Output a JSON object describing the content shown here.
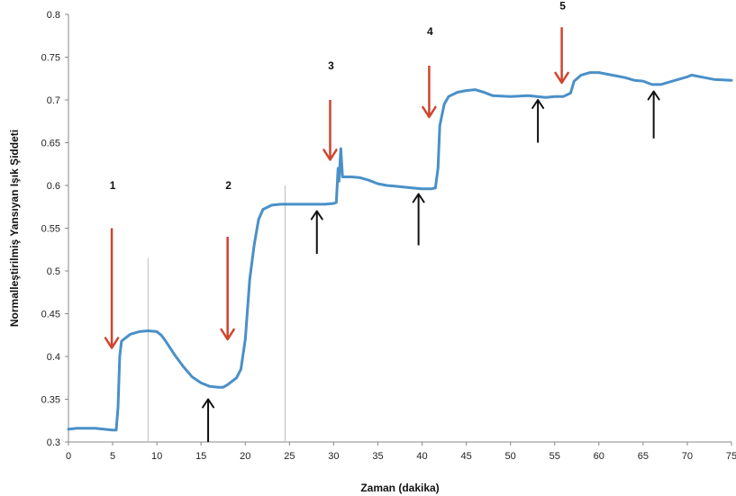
{
  "chart_data": {
    "type": "line",
    "xlabel": "Zaman (dakika)",
    "ylabel": "Normalleştirilmiş Yansıyan Işık Şiddeti",
    "xlim": [
      0,
      75
    ],
    "ylim": [
      0.3,
      0.8
    ],
    "x_ticks": [
      "0",
      "5",
      "10",
      "15",
      "20",
      "25",
      "30",
      "35",
      "40",
      "45",
      "50",
      "55",
      "60",
      "65",
      "70",
      "75"
    ],
    "y_ticks": [
      "0.3",
      "0.35",
      "0.4",
      "0.45",
      "0.5",
      "0.55",
      "0.6",
      "0.65",
      "0.7",
      "0.75",
      "0.8"
    ],
    "grid": false,
    "line_color": "#4a90c8",
    "series": [
      {
        "points": [
          [
            0,
            0.315
          ],
          [
            1,
            0.316
          ],
          [
            2,
            0.316
          ],
          [
            3,
            0.316
          ],
          [
            4,
            0.315
          ],
          [
            5,
            0.314
          ],
          [
            5.4,
            0.314
          ],
          [
            5.6,
            0.34
          ],
          [
            5.8,
            0.4
          ],
          [
            6,
            0.418
          ],
          [
            6.5,
            0.422
          ],
          [
            7,
            0.426
          ],
          [
            8,
            0.429
          ],
          [
            9,
            0.43
          ],
          [
            10,
            0.429
          ],
          [
            10.5,
            0.425
          ],
          [
            11,
            0.418
          ],
          [
            12,
            0.402
          ],
          [
            13,
            0.388
          ],
          [
            14,
            0.376
          ],
          [
            15,
            0.369
          ],
          [
            16,
            0.365
          ],
          [
            17,
            0.364
          ],
          [
            17.5,
            0.364
          ],
          [
            18,
            0.367
          ],
          [
            19,
            0.375
          ],
          [
            19.5,
            0.385
          ],
          [
            20,
            0.42
          ],
          [
            20.5,
            0.49
          ],
          [
            21,
            0.53
          ],
          [
            21.5,
            0.56
          ],
          [
            22,
            0.572
          ],
          [
            23,
            0.577
          ],
          [
            24,
            0.578
          ],
          [
            25,
            0.578
          ],
          [
            27,
            0.578
          ],
          [
            29,
            0.578
          ],
          [
            30,
            0.579
          ],
          [
            30.3,
            0.58
          ],
          [
            30.5,
            0.62
          ],
          [
            30.6,
            0.605
          ],
          [
            30.8,
            0.643
          ],
          [
            31,
            0.61
          ],
          [
            32,
            0.61
          ],
          [
            33,
            0.609
          ],
          [
            34,
            0.606
          ],
          [
            35,
            0.602
          ],
          [
            36,
            0.6
          ],
          [
            37,
            0.599
          ],
          [
            38,
            0.598
          ],
          [
            39,
            0.597
          ],
          [
            40,
            0.596
          ],
          [
            41,
            0.596
          ],
          [
            41.5,
            0.597
          ],
          [
            41.8,
            0.62
          ],
          [
            42,
            0.67
          ],
          [
            42.5,
            0.695
          ],
          [
            43,
            0.704
          ],
          [
            44,
            0.709
          ],
          [
            45,
            0.711
          ],
          [
            46,
            0.712
          ],
          [
            47,
            0.709
          ],
          [
            48,
            0.705
          ],
          [
            50,
            0.704
          ],
          [
            52,
            0.705
          ],
          [
            54,
            0.703
          ],
          [
            55,
            0.704
          ],
          [
            56,
            0.704
          ],
          [
            56.8,
            0.708
          ],
          [
            57.2,
            0.722
          ],
          [
            58,
            0.729
          ],
          [
            59,
            0.732
          ],
          [
            60,
            0.732
          ],
          [
            61,
            0.73
          ],
          [
            62,
            0.728
          ],
          [
            63,
            0.726
          ],
          [
            64,
            0.723
          ],
          [
            65,
            0.722
          ],
          [
            66,
            0.718
          ],
          [
            67,
            0.718
          ],
          [
            68,
            0.721
          ],
          [
            69,
            0.724
          ],
          [
            70,
            0.727
          ],
          [
            70.5,
            0.729
          ],
          [
            71,
            0.728
          ],
          [
            72,
            0.726
          ],
          [
            73,
            0.724
          ],
          [
            75,
            0.723
          ]
        ]
      }
    ],
    "vertical_lines": [
      9,
      24.5
    ],
    "vertical_line_color": "#bbbbbb",
    "down_arrows": [
      {
        "label": "1",
        "x": 4.9,
        "top": 0.55,
        "tip": 0.41,
        "label_y": 0.6
      },
      {
        "label": "2",
        "x": 18,
        "top": 0.54,
        "tip": 0.42,
        "label_y": 0.6
      },
      {
        "label": "3",
        "x": 29.6,
        "top": 0.7,
        "tip": 0.63,
        "label_y": 0.74
      },
      {
        "label": "4",
        "x": 40.8,
        "top": 0.74,
        "tip": 0.68,
        "label_y": 0.78
      },
      {
        "label": "5",
        "x": 55.8,
        "top": 0.785,
        "tip": 0.72,
        "label_y": 0.81
      }
    ],
    "down_arrow_color": "#d0442e",
    "up_arrows": [
      {
        "x": 15.8,
        "bottom": 0.3,
        "tip": 0.35
      },
      {
        "x": 28.1,
        "bottom": 0.52,
        "tip": 0.57
      },
      {
        "x": 39.6,
        "bottom": 0.53,
        "tip": 0.59
      },
      {
        "x": 53.1,
        "bottom": 0.65,
        "tip": 0.7
      },
      {
        "x": 66.2,
        "bottom": 0.655,
        "tip": 0.71
      }
    ],
    "up_arrow_color": "#111111"
  }
}
